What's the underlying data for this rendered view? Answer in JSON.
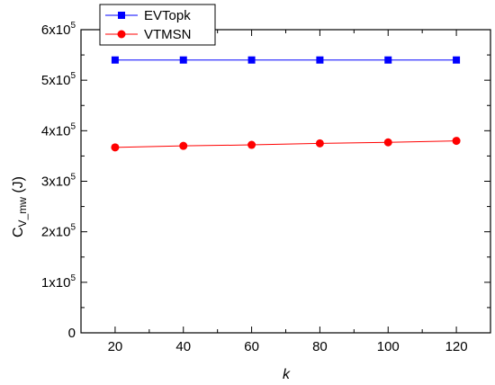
{
  "chart_data": {
    "type": "line",
    "x": [
      20,
      40,
      60,
      80,
      100,
      120
    ],
    "xlim": [
      10,
      130
    ],
    "ylim": [
      0,
      600000
    ],
    "xticks": [
      20,
      40,
      60,
      80,
      100,
      120
    ],
    "xtick_labels": [
      "20",
      "40",
      "60",
      "80",
      "100",
      "120"
    ],
    "yticks": [
      0,
      100000,
      200000,
      300000,
      400000,
      500000,
      600000
    ],
    "ytick_labels": [
      {
        "mant": "0",
        "exp": ""
      },
      {
        "mant": "1x10",
        "exp": "5"
      },
      {
        "mant": "2x10",
        "exp": "5"
      },
      {
        "mant": "3x10",
        "exp": "5"
      },
      {
        "mant": "4x10",
        "exp": "5"
      },
      {
        "mant": "5x10",
        "exp": "5"
      },
      {
        "mant": "6x10",
        "exp": "5"
      }
    ],
    "xlabel": "k",
    "ylabel": {
      "base": "C",
      "sub": "V_mw",
      "unit": " (J)"
    },
    "grid": false,
    "legend_position": "top-left",
    "series": [
      {
        "name": "EVTopk",
        "color": "#0000ff",
        "marker": "square",
        "values": [
          540000,
          540000,
          540000,
          540000,
          540000,
          540000
        ]
      },
      {
        "name": "VTMSN",
        "color": "#ff0000",
        "marker": "circle",
        "values": [
          367000,
          370000,
          372000,
          375000,
          377000,
          380000
        ]
      }
    ]
  }
}
